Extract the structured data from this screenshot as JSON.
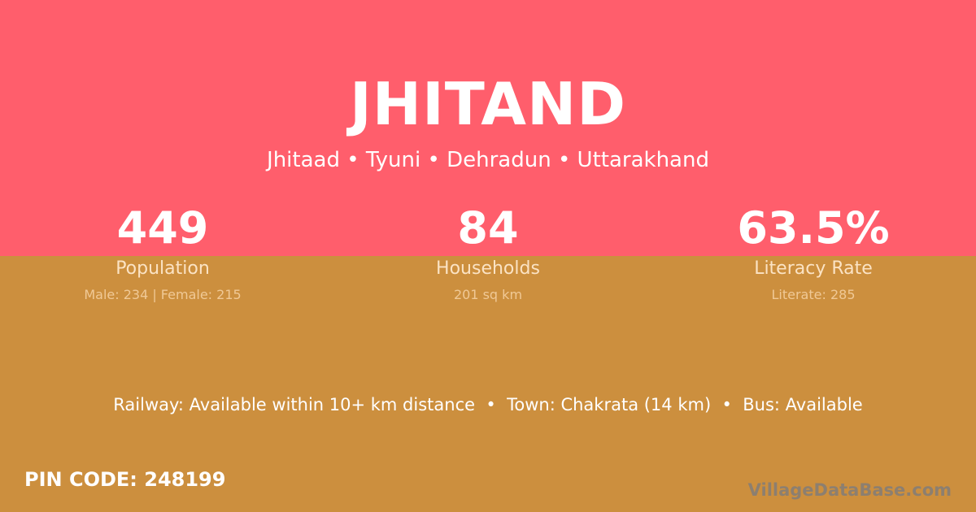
{
  "village": {
    "name": "JHITAND",
    "breadcrumb": "Jhitaad • Tyuni • Dehradun • Uttarakhand"
  },
  "stats": [
    {
      "value": "449",
      "label": "Population",
      "detail": "Male: 234 | Female: 215"
    },
    {
      "value": "84",
      "label": "Households",
      "detail": "201 sq km"
    },
    {
      "value": "63.5%",
      "label": "Literacy Rate",
      "detail": "Literate: 285"
    }
  ],
  "connectivity": "Railway: Available within 10+ km distance  •  Town: Chakrata (14 km)  •  Bus: Available",
  "pin_code": "PIN CODE: 248199",
  "watermark": "VillageDataBase.com",
  "colors": {
    "top": "#ff5e6c",
    "bottom": "#cc8f3e"
  }
}
